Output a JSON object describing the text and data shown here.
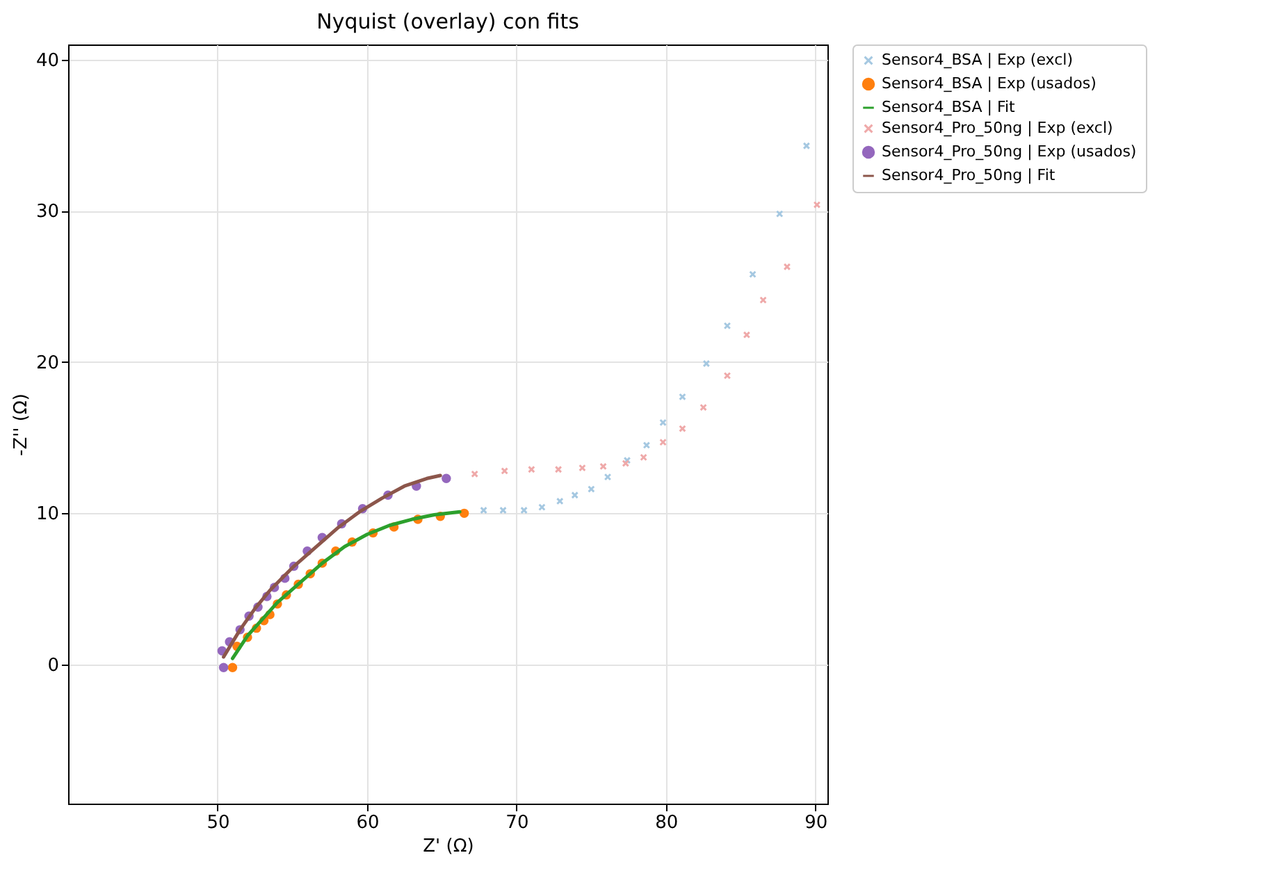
{
  "chart_data": {
    "type": "scatter",
    "title": "Nyquist (overlay) con fits",
    "xlabel": "Z' (Ω)",
    "ylabel": "-Z'' (Ω)",
    "xlim": [
      40,
      90.8
    ],
    "ylim": [
      -9.2,
      41
    ],
    "xticks": [
      50,
      60,
      70,
      80,
      90
    ],
    "yticks": [
      0,
      10,
      20,
      30,
      40
    ],
    "grid": true,
    "legend": "right",
    "series": [
      {
        "name": "Sensor4_BSA | Exp (excl)",
        "type": "scatter",
        "marker": "cross",
        "color": "#a5c8e1",
        "x": [
          67.8,
          69.1,
          70.5,
          71.7,
          72.9,
          73.9,
          75.0,
          76.1,
          77.4,
          78.7,
          79.8,
          81.1,
          82.7,
          84.1,
          85.8,
          87.6,
          89.4
        ],
        "values": [
          10.2,
          10.2,
          10.2,
          10.4,
          10.8,
          11.2,
          11.6,
          12.4,
          13.5,
          14.5,
          16.0,
          17.7,
          19.9,
          22.4,
          25.8,
          29.8,
          34.3
        ]
      },
      {
        "name": "Sensor4_BSA | Exp (usados)",
        "type": "scatter",
        "marker": "circle",
        "color": "#ff7f0e",
        "x": [
          66.5,
          64.9,
          63.4,
          61.8,
          60.4,
          59.0,
          57.9,
          57.0,
          56.2,
          55.4,
          54.6,
          54.0,
          53.5,
          53.1,
          52.6,
          52.0,
          51.3,
          51.0
        ],
        "values": [
          10.0,
          9.8,
          9.6,
          9.1,
          8.7,
          8.1,
          7.5,
          6.7,
          6.0,
          5.3,
          4.6,
          4.0,
          3.3,
          2.9,
          2.4,
          1.8,
          1.2,
          -0.2
        ]
      },
      {
        "name": "Sensor4_BSA | Fit",
        "type": "line",
        "marker": "none",
        "color": "#2ca02c",
        "x": [
          51.0,
          52.0,
          53.0,
          54.0,
          55.5,
          57.0,
          58.5,
          60.0,
          61.5,
          63.0,
          64.5,
          66.2
        ],
        "values": [
          0.4,
          1.9,
          3.0,
          4.1,
          5.4,
          6.7,
          7.8,
          8.6,
          9.2,
          9.6,
          9.9,
          10.1
        ]
      },
      {
        "name": "Sensor4_Pro_50ng | Exp (excl)",
        "type": "scatter",
        "marker": "cross",
        "color": "#efa9a9",
        "x": [
          67.2,
          69.2,
          71.0,
          72.8,
          74.4,
          75.8,
          77.3,
          78.5,
          79.8,
          81.1,
          82.5,
          84.1,
          85.4,
          86.5,
          88.1,
          90.1
        ],
        "values": [
          12.6,
          12.8,
          12.9,
          12.9,
          13.0,
          13.1,
          13.3,
          13.7,
          14.7,
          15.6,
          17.0,
          19.1,
          21.8,
          24.1,
          26.3,
          30.4
        ]
      },
      {
        "name": "Sensor4_Pro_50ng | Exp (usados)",
        "type": "scatter",
        "marker": "circle",
        "color": "#9467bd",
        "x": [
          65.3,
          63.3,
          61.4,
          59.7,
          58.3,
          57.0,
          56.0,
          55.1,
          54.5,
          53.8,
          53.3,
          52.7,
          52.1,
          51.5,
          50.8,
          50.3,
          50.4
        ],
        "values": [
          12.3,
          11.8,
          11.2,
          10.3,
          9.3,
          8.4,
          7.5,
          6.5,
          5.7,
          5.1,
          4.5,
          3.8,
          3.2,
          2.3,
          1.5,
          0.9,
          -0.2
        ]
      },
      {
        "name": "Sensor4_Pro_50ng | Fit",
        "type": "line",
        "marker": "none",
        "color": "#8c564b",
        "x": [
          50.4,
          51.5,
          52.5,
          53.5,
          55.0,
          56.5,
          58.0,
          59.5,
          61.0,
          62.5,
          64.0,
          64.9
        ],
        "values": [
          0.5,
          2.3,
          3.7,
          4.9,
          6.4,
          7.7,
          9.0,
          10.1,
          11.0,
          11.8,
          12.3,
          12.5
        ]
      }
    ]
  }
}
